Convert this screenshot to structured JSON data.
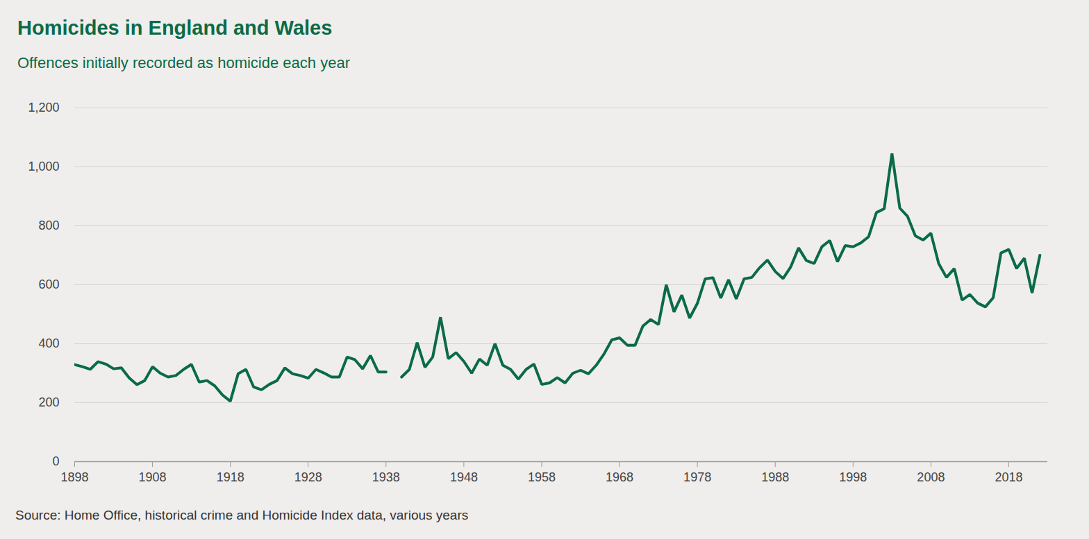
{
  "chart_data": {
    "type": "line",
    "title": "Homicides in England and Wales",
    "subtitle": "Offences initially recorded as homicide each year",
    "caption": "Source: Home Office, historical crime and Homicide Index data, various years",
    "x": [
      1898,
      1899,
      1900,
      1901,
      1902,
      1903,
      1904,
      1905,
      1906,
      1907,
      1908,
      1909,
      1910,
      1911,
      1912,
      1913,
      1914,
      1915,
      1916,
      1917,
      1918,
      1919,
      1920,
      1921,
      1922,
      1923,
      1924,
      1925,
      1926,
      1927,
      1928,
      1929,
      1930,
      1931,
      1932,
      1933,
      1934,
      1935,
      1936,
      1937,
      1938,
      1939,
      1940,
      1941,
      1942,
      1943,
      1944,
      1945,
      1946,
      1947,
      1948,
      1949,
      1950,
      1951,
      1952,
      1953,
      1954,
      1955,
      1956,
      1957,
      1958,
      1959,
      1960,
      1961,
      1962,
      1963,
      1964,
      1965,
      1966,
      1967,
      1968,
      1969,
      1970,
      1971,
      1972,
      1973,
      1974,
      1975,
      1976,
      1977,
      1978,
      1979,
      1980,
      1981,
      1982,
      1983,
      1984,
      1985,
      1986,
      1987,
      1988,
      1989,
      1990,
      1991,
      1992,
      1993,
      1994,
      1995,
      1996,
      1997,
      1998,
      1999,
      2000,
      2001,
      2002,
      2003,
      2004,
      2005,
      2006,
      2007,
      2008,
      2009,
      2010,
      2011,
      2012,
      2013,
      2014,
      2015,
      2016,
      2017,
      2018,
      2019,
      2020,
      2021,
      2022
    ],
    "values": [
      329,
      322,
      313,
      339,
      331,
      315,
      318,
      284,
      261,
      275,
      322,
      300,
      287,
      292,
      313,
      330,
      270,
      275,
      257,
      226,
      205,
      298,
      313,
      253,
      244,
      262,
      275,
      318,
      298,
      292,
      283,
      313,
      301,
      287,
      287,
      355,
      346,
      315,
      360,
      304,
      304,
      null,
      287,
      313,
      404,
      320,
      355,
      490,
      349,
      370,
      340,
      300,
      348,
      327,
      400,
      327,
      313,
      280,
      313,
      331,
      262,
      267,
      285,
      267,
      300,
      310,
      298,
      327,
      365,
      413,
      420,
      395,
      395,
      460,
      482,
      465,
      600,
      508,
      565,
      487,
      537,
      620,
      624,
      555,
      617,
      552,
      620,
      625,
      658,
      684,
      645,
      621,
      661,
      725,
      682,
      672,
      729,
      750,
      678,
      733,
      729,
      742,
      763,
      845,
      858,
      1045,
      860,
      832,
      766,
      752,
      775,
      672,
      625,
      655,
      548,
      567,
      538,
      525,
      556,
      708,
      720,
      655,
      690,
      572,
      700
    ],
    "color": "#0a6b47",
    "xlim": [
      1898,
      2023
    ],
    "xticks": [
      1898,
      1908,
      1918,
      1928,
      1938,
      1948,
      1958,
      1968,
      1978,
      1988,
      1998,
      2008,
      2018
    ],
    "ylim": [
      0,
      1200
    ],
    "yticks": [
      0,
      200,
      400,
      600,
      800,
      {
        "value": 1000,
        "label": "1,000"
      },
      {
        "value": 1200,
        "label": "1,200"
      }
    ],
    "grid": true
  }
}
